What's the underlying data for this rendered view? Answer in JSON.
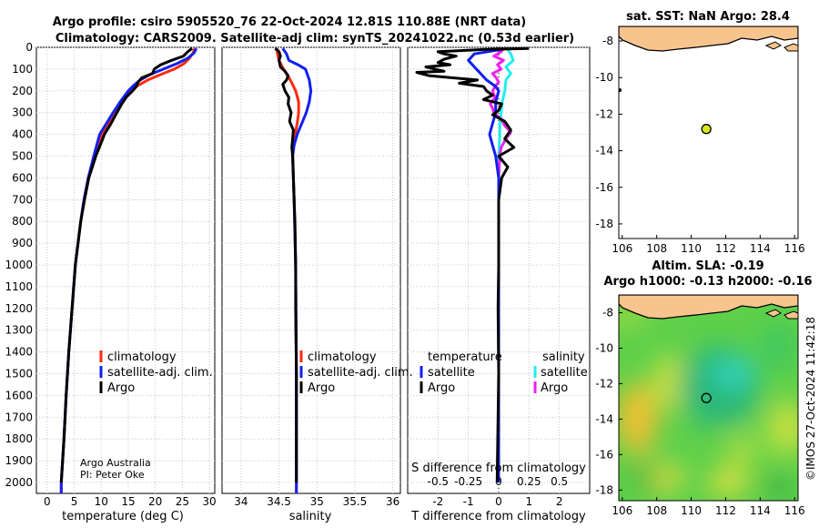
{
  "header": {
    "title_line1": "Argo profile: csiro 5905520_76 22-Oct-2024 12.81S 110.88E (NRT data)",
    "title_line2": "Climatology: CARS2009. Satellite-adj clim: synTS_20241022.nc (0.53d earlier)"
  },
  "attribution": {
    "line1": "Argo Australia",
    "line2": "PI: Peter Oke"
  },
  "watermark": "©IMOS 27-Oct-2024 11:42:18",
  "colors": {
    "climatology": "#ff2a10",
    "satellite": "#1020ee",
    "argo": "#000000",
    "salinity_sat": "#22eeee",
    "salinity_argo": "#ee22ee",
    "land": "#f8c48e"
  },
  "chart_data": [
    {
      "id": "temperature",
      "type": "line",
      "xlabel": "temperature (deg C)",
      "xlim": [
        -2,
        31
      ],
      "ylim": [
        2050,
        0
      ],
      "xticks": [
        0,
        5,
        10,
        15,
        20,
        25,
        30
      ],
      "yticks": [
        0,
        100,
        200,
        300,
        400,
        500,
        600,
        700,
        800,
        900,
        1000,
        1100,
        1200,
        1300,
        1400,
        1500,
        1600,
        1700,
        1800,
        1900,
        2000
      ],
      "legend": [
        "climatology",
        "satellite-adj. clim.",
        "Argo"
      ],
      "series": [
        {
          "name": "climatology",
          "depth": [
            5,
            25,
            50,
            75,
            100,
            125,
            150,
            175,
            200,
            250,
            300,
            400,
            500,
            600,
            700,
            800,
            1000,
            1200,
            1400,
            1600,
            1800,
            2000,
            2050
          ],
          "values": [
            27.3,
            27.0,
            26.3,
            25.3,
            23.5,
            21.0,
            18.6,
            16.8,
            15.5,
            13.7,
            12.4,
            10.2,
            8.7,
            7.6,
            6.8,
            6.2,
            5.2,
            4.6,
            4.0,
            3.5,
            3.1,
            2.6,
            2.6
          ]
        },
        {
          "name": "satellite-adj. clim.",
          "depth": [
            5,
            25,
            50,
            75,
            100,
            125,
            150,
            175,
            200,
            250,
            300,
            400,
            500,
            600,
            700,
            800,
            1000,
            1200,
            1400,
            1600,
            1800,
            2000,
            2050
          ],
          "values": [
            27.6,
            27.2,
            26.0,
            24.0,
            21.5,
            19.0,
            17.2,
            16.0,
            15.0,
            13.5,
            12.2,
            9.7,
            8.6,
            7.6,
            6.8,
            6.2,
            5.2,
            4.6,
            4.0,
            3.5,
            3.1,
            2.6,
            2.6
          ]
        },
        {
          "name": "Argo",
          "depth": [
            5,
            20,
            40,
            60,
            80,
            100,
            120,
            140,
            160,
            180,
            200,
            230,
            260,
            300,
            350,
            400,
            450,
            500,
            600,
            700,
            800,
            1000,
            1200,
            1400,
            1600,
            1800,
            2000
          ],
          "values": [
            26.8,
            26.0,
            25.2,
            23.0,
            21.0,
            19.8,
            19.5,
            17.5,
            16.8,
            16.5,
            15.8,
            14.6,
            13.8,
            12.9,
            11.8,
            10.6,
            9.8,
            9.0,
            7.7,
            6.9,
            6.2,
            5.2,
            4.6,
            4.0,
            3.5,
            3.1,
            2.6
          ]
        }
      ]
    },
    {
      "id": "salinity",
      "type": "line",
      "xlabel": "salinity",
      "xlim": [
        33.75,
        36.1
      ],
      "ylim": [
        2050,
        0
      ],
      "xticks": [
        34,
        34.5,
        35,
        35.5,
        36
      ],
      "xtick_labels": [
        "34",
        "34.5",
        "35",
        "35.5",
        "36"
      ],
      "legend": [
        "climatology",
        "satellite-adj. clim.",
        "Argo"
      ],
      "series": [
        {
          "name": "climatology",
          "depth": [
            5,
            30,
            60,
            100,
            150,
            200,
            250,
            300,
            350,
            400,
            500,
            700,
            1000,
            1500,
            2000,
            2050
          ],
          "values": [
            34.48,
            34.48,
            34.5,
            34.56,
            34.65,
            34.72,
            34.76,
            34.76,
            34.74,
            34.71,
            34.68,
            34.7,
            34.72,
            34.73,
            34.73,
            34.73
          ]
        },
        {
          "name": "satellite-adj. clim.",
          "depth": [
            5,
            30,
            60,
            80,
            100,
            150,
            200,
            250,
            300,
            350,
            400,
            450,
            500,
            700,
            1000,
            1500,
            2000,
            2050
          ],
          "values": [
            34.55,
            34.6,
            34.63,
            34.75,
            34.85,
            34.9,
            34.92,
            34.9,
            34.86,
            34.8,
            34.74,
            34.7,
            34.68,
            34.7,
            34.72,
            34.73,
            34.73,
            34.73
          ]
        },
        {
          "name": "Argo",
          "depth": [
            5,
            20,
            40,
            60,
            90,
            110,
            130,
            150,
            170,
            200,
            230,
            260,
            300,
            340,
            380,
            420,
            460,
            500,
            600,
            700,
            800,
            1000,
            1200,
            1500,
            1800,
            2000
          ],
          "values": [
            34.45,
            34.5,
            34.52,
            34.5,
            34.52,
            34.58,
            34.62,
            34.6,
            34.55,
            34.58,
            34.63,
            34.62,
            34.66,
            34.64,
            34.69,
            34.68,
            34.67,
            34.68,
            34.69,
            34.7,
            34.71,
            34.72,
            34.72,
            34.73,
            34.73,
            34.73
          ]
        }
      ]
    },
    {
      "id": "difference",
      "type": "line",
      "xlabel": "T difference from climatology",
      "xlabel_top": "S difference from climatology",
      "xlim": [
        -3,
        3
      ],
      "ylim": [
        2050,
        0
      ],
      "xticks": [
        -2,
        -1,
        0,
        1,
        2
      ],
      "s_xticks": [
        -0.5,
        -0.25,
        0,
        0.25,
        0.5
      ],
      "s_xtick_labels": [
        "-0.5",
        "-0.25",
        "0",
        "0.25",
        "0.5"
      ],
      "legend_temperature": {
        "title": "temperature",
        "items": [
          "satellite",
          "Argo"
        ]
      },
      "legend_salinity": {
        "title": "salinity",
        "items": [
          "satellite",
          "Argo"
        ]
      },
      "series": [
        {
          "name": "temperature satellite",
          "depth": [
            5,
            30,
            60,
            90,
            120,
            150,
            180,
            200,
            250,
            300,
            350,
            400,
            450,
            500,
            600,
            800,
            1000,
            1500,
            2000
          ],
          "values": [
            0.3,
            -0.8,
            -1.0,
            -0.8,
            -0.6,
            -0.4,
            -0.1,
            0.0,
            -0.1,
            -0.1,
            -0.2,
            -0.3,
            -0.2,
            -0.1,
            0,
            0,
            0,
            0,
            0
          ]
        },
        {
          "name": "temperature Argo",
          "depth": [
            5,
            10,
            20,
            30,
            40,
            55,
            70,
            80,
            90,
            100,
            110,
            115,
            130,
            150,
            165,
            180,
            200,
            220,
            240,
            260,
            290,
            310,
            340,
            380,
            420,
            460,
            500,
            550,
            600,
            700,
            800,
            1000,
            1200,
            1500,
            2000
          ],
          "values": [
            1.0,
            -0.5,
            -2.0,
            -1.8,
            -1.4,
            -1.8,
            -2.0,
            -1.6,
            -2.4,
            -2.1,
            -1.8,
            -2.7,
            -2.3,
            -0.7,
            -1.3,
            -0.5,
            -0.4,
            -0.2,
            -0.5,
            0.1,
            0.0,
            -0.2,
            0.2,
            0.4,
            0.2,
            0.5,
            0.0,
            0.3,
            0.1,
            0.0,
            0.0,
            0.0,
            -0.02,
            0.0,
            -0.05
          ]
        },
        {
          "name": "salinity satellite",
          "depth": [
            5,
            30,
            60,
            90,
            120,
            150,
            200,
            250,
            300,
            350,
            400,
            500,
            700,
            1000,
            1500,
            2000
          ],
          "values": [
            0.07,
            0.1,
            0.12,
            0.06,
            0.1,
            0.06,
            0.05,
            0.03,
            0.02,
            0.01,
            0.01,
            0.0,
            0.0,
            0.0,
            0.0,
            0.0
          ]
        },
        {
          "name": "salinity Argo",
          "depth": [
            5,
            20,
            40,
            60,
            80,
            100,
            120,
            140,
            160,
            180,
            200,
            230,
            260,
            280,
            300,
            330,
            360,
            390,
            420,
            460,
            500,
            600,
            800,
            1000,
            1500,
            2000
          ],
          "values": [
            0.04,
            0.02,
            -0.04,
            0.04,
            -0.01,
            0.02,
            -0.05,
            -0.02,
            0.0,
            -0.03,
            -0.05,
            -0.03,
            -0.07,
            -0.05,
            -0.04,
            0.02,
            0.05,
            0.1,
            0.06,
            0.02,
            0.01,
            0.0,
            0.0,
            0.0,
            0.0,
            0.0
          ]
        }
      ]
    },
    {
      "id": "sst_map",
      "type": "scatter",
      "title": "sat. SST: NaN Argo: 28.4",
      "xlim": [
        105.8,
        116.2
      ],
      "ylim": [
        -18.8,
        -7.2
      ],
      "xticks": [
        106,
        108,
        110,
        112,
        114,
        116
      ],
      "yticks": [
        -8,
        -10,
        -12,
        -14,
        -16,
        -18
      ],
      "argo_position": {
        "lon": 110.88,
        "lat": -12.81
      }
    },
    {
      "id": "sla_map",
      "type": "heatmap",
      "title_line1": "Altim. SLA: -0.19",
      "title_line2": "Argo h1000: -0.13 h2000: -0.16",
      "xlim": [
        105.8,
        116.2
      ],
      "ylim": [
        -18.6,
        -7.0
      ],
      "xticks": [
        106,
        108,
        110,
        112,
        114,
        116
      ],
      "yticks": [
        -8,
        -10,
        -12,
        -14,
        -16,
        -18
      ],
      "argo_position": {
        "lon": 110.88,
        "lat": -12.81
      }
    }
  ]
}
